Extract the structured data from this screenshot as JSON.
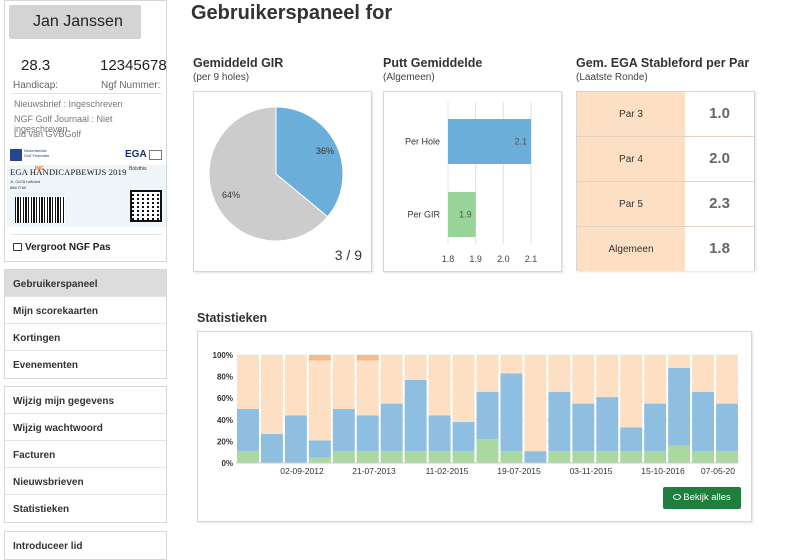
{
  "profile": {
    "name": "Jan Janssen",
    "handicap_value": "28.3",
    "handicap_label": "Handicap:",
    "ngf_number": "12345678",
    "ngf_label": "Ngf Nummer:",
    "newsletter": "Nieuwsbrief : Ingeschreven",
    "journal": "NGF Golf Journaal : Niet ingeschreven",
    "club": "Lid van GVBGolf",
    "card_title": "EGA HANDICAPBEWIJS 2019",
    "card_line1": "Jt. Go78 haNoed",
    "card_line2": "888 fT.fel",
    "card_brand": "EGA",
    "card_ing": "ING",
    "card_logo2": "",
    "card_logo3": "Bolsthis",
    "enlarge_label": "Vergroot NGF Pas"
  },
  "menu_groups": [
    [
      "Gebruikerspaneel",
      "Mijn scorekaarten",
      "Kortingen",
      "Evenementen"
    ],
    [
      "Wijzig mijn gegevens",
      "Wijzig wachtwoord",
      "Facturen",
      "Nieuwsbrieven",
      "Statistieken"
    ],
    [
      "Introduceer lid"
    ]
  ],
  "page_title": "Gebruikerspaneel for",
  "gir": {
    "title": "Gemiddeld GIR",
    "subtitle": "(per 9 holes)",
    "fraction": "3 / 9",
    "chart_data": {
      "type": "pie",
      "labels": [
        "36%",
        "64%"
      ],
      "values": [
        36,
        64
      ],
      "colors": [
        "#6aaed9",
        "#cccccc"
      ]
    }
  },
  "putt": {
    "title": "Putt Gemiddelde",
    "subtitle": "(Algemeen)",
    "chart_data": {
      "type": "bar",
      "orientation": "horizontal",
      "categories": [
        "Per Hole",
        "Per GIR"
      ],
      "values": [
        2.1,
        1.9
      ],
      "value_labels": [
        "2.1",
        "1.9"
      ],
      "colors": [
        "#6aaed9",
        "#98d39a"
      ],
      "xlim": [
        1.8,
        2.1
      ],
      "xticks": [
        "1.8",
        "1.9",
        "2.0",
        "2.1"
      ]
    }
  },
  "ega": {
    "title": "Gem. EGA Stableford per Par",
    "subtitle": "(Laatste Ronde)",
    "rows": [
      {
        "label": "Par 3",
        "value": "1.0"
      },
      {
        "label": "Par 4",
        "value": "2.0"
      },
      {
        "label": "Par 5",
        "value": "2.3"
      },
      {
        "label": "Algemeen",
        "value": "1.8"
      }
    ]
  },
  "stats": {
    "title": "Statistieken",
    "button_label": "Bekijk alles",
    "chart_data": {
      "type": "bar",
      "stacked": true,
      "ylim": [
        0,
        100
      ],
      "yticks": [
        "0%",
        "20%",
        "40%",
        "60%",
        "80%",
        "100%"
      ],
      "xticks": [
        "02-09-2012",
        "21-07-2013",
        "11-02-2015",
        "19-07-2015",
        "03-11-2015",
        "15-10-2016",
        "07-05-20"
      ],
      "colors": {
        "green": "#a9d8a0",
        "blue": "#8fbfe0",
        "peach": "#fde0c4",
        "orange": "#f5b98a"
      },
      "series": [
        {
          "color_key": "green",
          "values": [
            11,
            0,
            0,
            5,
            11,
            11,
            11,
            11,
            11,
            11,
            22,
            11,
            0,
            11,
            11,
            11,
            11,
            11,
            16,
            11,
            11
          ]
        },
        {
          "color_key": "blue",
          "values": [
            39,
            27,
            44,
            16,
            39,
            33,
            44,
            66,
            33,
            27,
            44,
            72,
            11,
            55,
            44,
            50,
            22,
            44,
            72,
            55,
            44
          ]
        },
        {
          "color_key": "peach",
          "values": [
            50,
            73,
            56,
            74,
            50,
            51,
            45,
            23,
            56,
            62,
            34,
            17,
            89,
            34,
            45,
            39,
            67,
            45,
            12,
            34,
            45
          ]
        },
        {
          "color_key": "orange",
          "values": [
            0,
            0,
            0,
            5,
            0,
            5,
            0,
            0,
            0,
            0,
            0,
            0,
            0,
            0,
            0,
            0,
            0,
            0,
            0,
            0,
            0
          ]
        }
      ]
    }
  }
}
